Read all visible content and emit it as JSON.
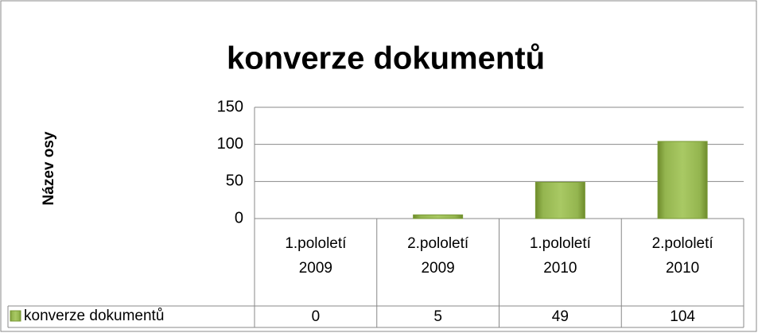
{
  "chart_data": {
    "type": "bar",
    "title": "konverze dokumentů",
    "y_label": "Název osy",
    "categories": [
      "1.pololetí 2009",
      "2.pololetí 2009",
      "1.pololetí 2010",
      "2.pololetí 2010"
    ],
    "series": [
      {
        "name": "konverze dokumentů",
        "color": "#9bbb59",
        "values": [
          0,
          5,
          49,
          104
        ]
      }
    ],
    "ylim": [
      0,
      150
    ],
    "yticks": [
      0,
      50,
      100,
      150
    ],
    "grid": true,
    "data_table": true
  }
}
